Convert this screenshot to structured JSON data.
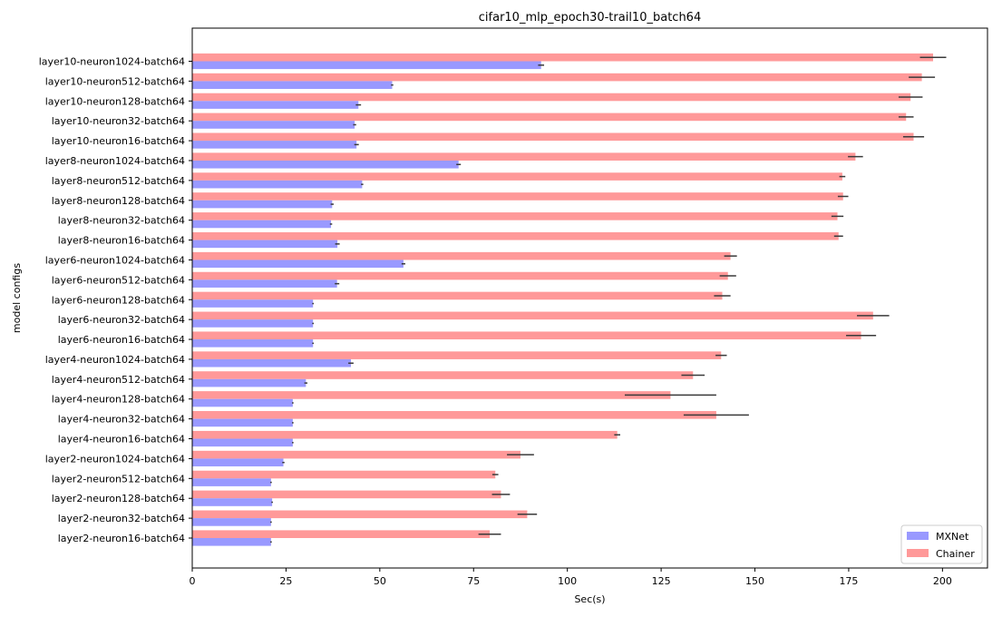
{
  "chart_data": {
    "type": "bar",
    "orientation": "horizontal",
    "title": "cifar10_mlp_epoch30-trail10_batch64",
    "xlabel": "Sec(s)",
    "ylabel": "model configs",
    "xlim": [
      0,
      212
    ],
    "xticks": [
      0,
      25,
      50,
      75,
      100,
      125,
      150,
      175,
      200
    ],
    "grid": false,
    "legend_position": "bottom-right",
    "categories": [
      "layer10-neuron1024-batch64",
      "layer10-neuron512-batch64",
      "layer10-neuron128-batch64",
      "layer10-neuron32-batch64",
      "layer10-neuron16-batch64",
      "layer8-neuron1024-batch64",
      "layer8-neuron512-batch64",
      "layer8-neuron128-batch64",
      "layer8-neuron32-batch64",
      "layer8-neuron16-batch64",
      "layer6-neuron1024-batch64",
      "layer6-neuron512-batch64",
      "layer6-neuron128-batch64",
      "layer6-neuron32-batch64",
      "layer6-neuron16-batch64",
      "layer4-neuron1024-batch64",
      "layer4-neuron512-batch64",
      "layer4-neuron128-batch64",
      "layer4-neuron32-batch64",
      "layer4-neuron16-batch64",
      "layer2-neuron1024-batch64",
      "layer2-neuron512-batch64",
      "layer2-neuron128-batch64",
      "layer2-neuron32-batch64",
      "layer2-neuron16-batch64"
    ],
    "series": [
      {
        "name": "MXNet",
        "color": "#9999ff",
        "values": [
          93,
          53.3,
          44.3,
          43.3,
          43.8,
          71,
          45.3,
          37.3,
          37,
          38.7,
          56.3,
          38.6,
          32.2,
          32.2,
          32.2,
          42.3,
          30.3,
          26.8,
          26.8,
          26.8,
          24.3,
          21,
          21.3,
          21,
          21
        ],
        "errors": [
          0.8,
          0.3,
          0.7,
          0.4,
          0.6,
          0.6,
          0.3,
          0.4,
          0.3,
          0.6,
          0.5,
          0.6,
          0.2,
          0.2,
          0.2,
          0.7,
          0.4,
          0.2,
          0.2,
          0.2,
          0.3,
          0.2,
          0.2,
          0.2,
          0.2
        ]
      },
      {
        "name": "Chainer",
        "color": "#ff9999",
        "values": [
          197.5,
          194.5,
          191.5,
          190.3,
          192.3,
          176.8,
          173.3,
          173.5,
          172,
          172.3,
          143.5,
          142.8,
          141.3,
          181.5,
          178.3,
          141,
          133.5,
          127.5,
          139.7,
          113.3,
          87.5,
          80.8,
          82.3,
          89.3,
          79.3
        ],
        "errors": [
          3.5,
          3.5,
          3.2,
          2.0,
          2.8,
          2.0,
          0.8,
          1.4,
          1.6,
          1.2,
          1.7,
          2.2,
          2.2,
          4.3,
          4.0,
          1.5,
          3.1,
          12.2,
          8.7,
          0.8,
          3.6,
          0.8,
          2.4,
          2.6,
          3.0
        ]
      }
    ]
  }
}
